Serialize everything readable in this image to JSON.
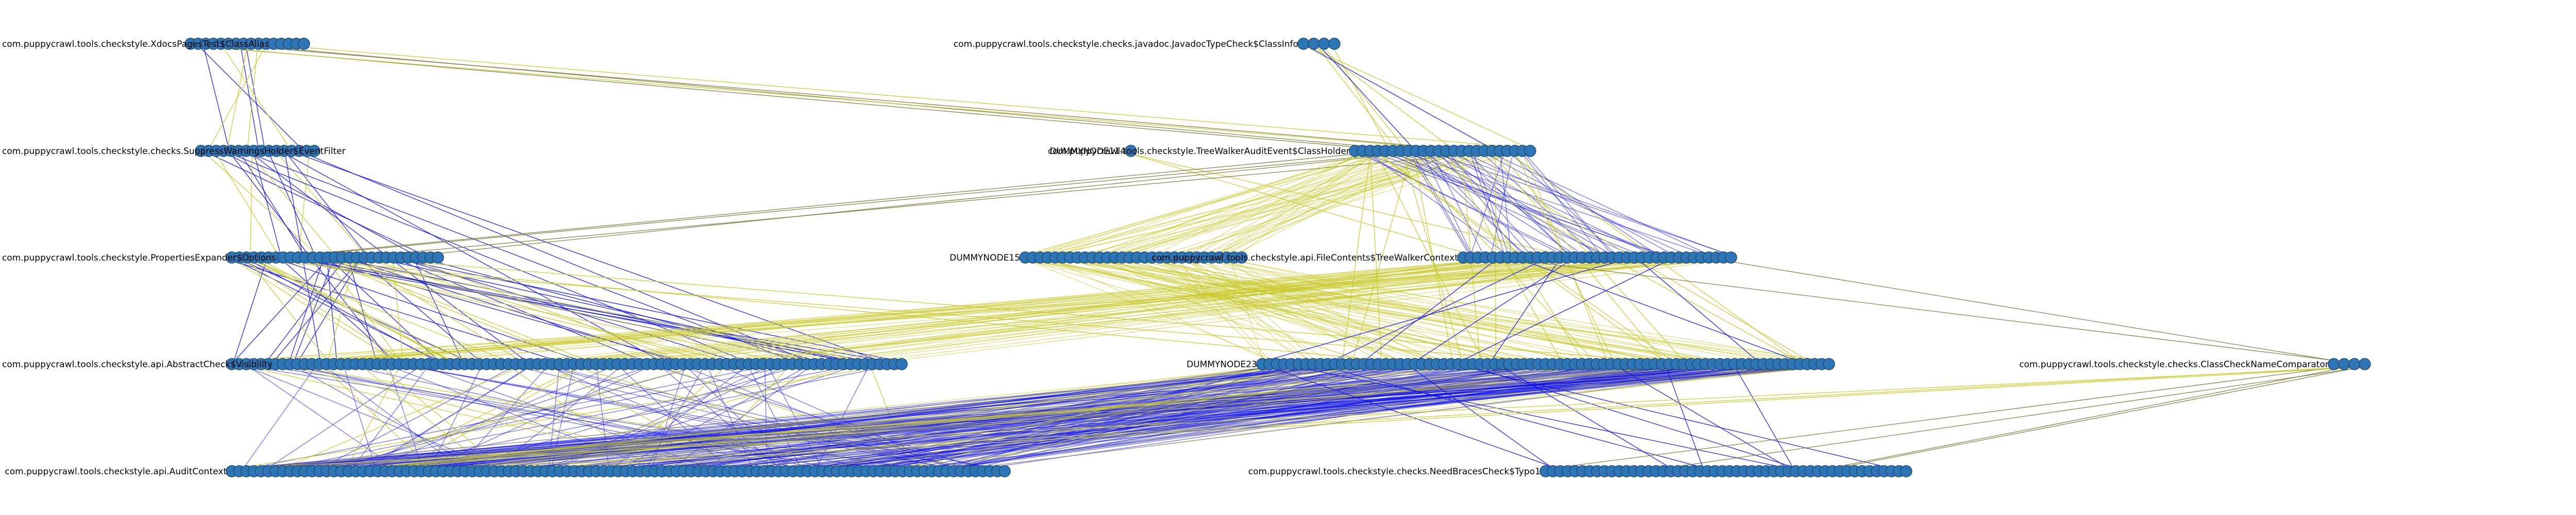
{
  "colors": {
    "background": "#ffffff",
    "node_fill": "#2e75b6",
    "node_stroke": "#1f4e79",
    "edge_blue": "#1010ee",
    "edge_yellow": "#c8c82a",
    "edge_olive": "#7a7a3a",
    "label": "#000000"
  },
  "diagram": {
    "type": "layered dependency graph",
    "layers": 5,
    "nodes": [
      {
        "id": "n1",
        "layer": 0,
        "label": "com.puppycrawl.tools.checkstyle.XdocsPagesTest$ClassAlias",
        "collapsed_stack": true
      },
      {
        "id": "n2",
        "layer": 0,
        "label": "com.puppycrawl.tools.checkstyle.checks.javadoc.JavadocTypeCheck$ClassInfo",
        "collapsed_stack": true
      },
      {
        "id": "n3",
        "layer": 1,
        "label": "com.puppycrawl.tools.checkstyle.checks.SuppressWarningsHolder$EventFilter",
        "collapsed_stack": true
      },
      {
        "id": "n4",
        "layer": 1,
        "label": "DUMMYNODE114",
        "collapsed_stack": false
      },
      {
        "id": "n5",
        "layer": 1,
        "label": "com.puppycrawl.tools.checkstyle.TreeWalkerAuditEvent$ClassHolder",
        "collapsed_stack": true
      },
      {
        "id": "n6",
        "layer": 2,
        "label": "com.puppycrawl.tools.checkstyle.PropertiesExpander$Options",
        "collapsed_stack": true
      },
      {
        "id": "n7",
        "layer": 2,
        "label": "DUMMYNODE15",
        "collapsed_stack": true
      },
      {
        "id": "n8",
        "layer": 2,
        "label": "com.puppycrawl.tools.checkstyle.api.FileContents$TreeWalkerContext",
        "collapsed_stack": true
      },
      {
        "id": "n9",
        "layer": 3,
        "label": "com.puppycrawl.tools.checkstyle.api.AbstractCheck$Visibility",
        "collapsed_stack": true
      },
      {
        "id": "n10",
        "layer": 3,
        "label": "DUMMYNODE23",
        "collapsed_stack": true
      },
      {
        "id": "n11",
        "layer": 3,
        "label": "com.puppycrawl.tools.checkstyle.checks.ClassCheckNameComparator",
        "collapsed_stack": true
      },
      {
        "id": "n12",
        "layer": 4,
        "label": "com.puppycrawl.tools.checkstyle.api.AuditContext",
        "collapsed_stack": true
      },
      {
        "id": "n13",
        "layer": 4,
        "label": "com.puppycrawl.tools.checkstyle.checks.NeedBracesCheck$Typo1",
        "collapsed_stack": true
      }
    ],
    "edge_bundles": [
      {
        "from": "n1",
        "to": "n3",
        "color": "blue",
        "count": 4
      },
      {
        "from": "n1",
        "to": "n3",
        "color": "yellow",
        "count": 4
      },
      {
        "from": "n1",
        "to": "n5",
        "color": "olive",
        "count": 3
      },
      {
        "from": "n1",
        "to": "n5",
        "color": "yellow",
        "count": 2
      },
      {
        "from": "n2",
        "to": "n5",
        "color": "yellow",
        "count": 5
      },
      {
        "from": "n2",
        "to": "n5",
        "color": "blue",
        "count": 2
      },
      {
        "from": "n3",
        "to": "n6",
        "color": "blue",
        "count": 6
      },
      {
        "from": "n3",
        "to": "n6",
        "color": "yellow",
        "count": 6
      },
      {
        "from": "n3",
        "to": "n9",
        "color": "blue",
        "count": 8
      },
      {
        "from": "n4",
        "to": "n8",
        "color": "yellow",
        "count": 2
      },
      {
        "from": "n5",
        "to": "n6",
        "color": "olive",
        "count": 4
      },
      {
        "from": "n5",
        "to": "n7",
        "color": "yellow",
        "count": 40
      },
      {
        "from": "n5",
        "to": "n8",
        "color": "blue",
        "count": 40
      },
      {
        "from": "n5",
        "to": "n10",
        "color": "yellow",
        "count": 20
      },
      {
        "from": "n6",
        "to": "n9",
        "color": "blue",
        "count": 30
      },
      {
        "from": "n6",
        "to": "n9",
        "color": "yellow",
        "count": 20
      },
      {
        "from": "n6",
        "to": "n10",
        "color": "yellow",
        "count": 3
      },
      {
        "from": "n7",
        "to": "n10",
        "color": "yellow",
        "count": 60
      },
      {
        "from": "n8",
        "to": "n9",
        "color": "yellow",
        "count": 50
      },
      {
        "from": "n8",
        "to": "n10",
        "color": "blue",
        "count": 8
      },
      {
        "from": "n8",
        "to": "n11",
        "color": "olive",
        "count": 2
      },
      {
        "from": "n9",
        "to": "n12",
        "color": "blue",
        "count": 60
      },
      {
        "from": "n9",
        "to": "n12",
        "color": "yellow",
        "count": 20
      },
      {
        "from": "n10",
        "to": "n12",
        "color": "blue",
        "count": 150
      },
      {
        "from": "n10",
        "to": "n12",
        "color": "yellow",
        "count": 40
      },
      {
        "from": "n10",
        "to": "n13",
        "color": "blue",
        "count": 10
      },
      {
        "from": "n11",
        "to": "n13",
        "color": "olive",
        "count": 4
      },
      {
        "from": "n11",
        "to": "n12",
        "color": "yellow",
        "count": 3
      }
    ]
  }
}
